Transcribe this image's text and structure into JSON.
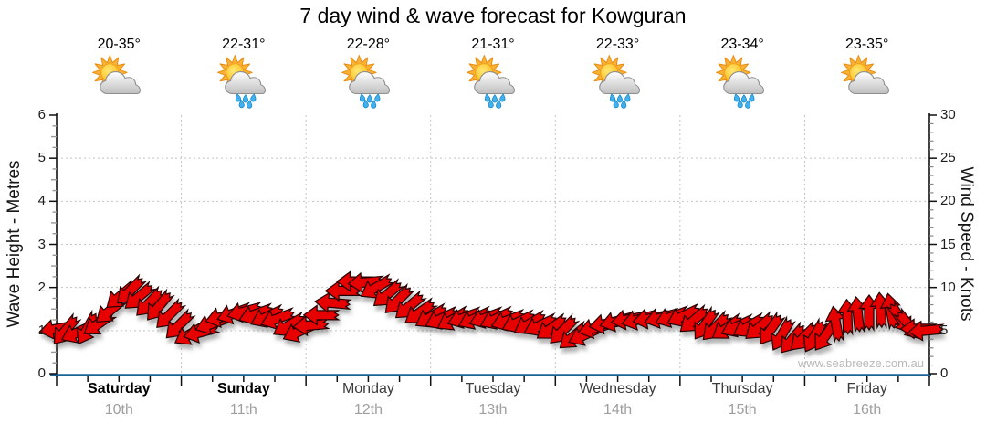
{
  "header": {
    "title": "7 day wind & wave forecast for Kowguran"
  },
  "watermark": "www.seabreeze.com.au",
  "days": [
    {
      "name": "Saturday",
      "date": "10th",
      "temp": "20-35°",
      "icon": "sun-cloud",
      "weekend": true
    },
    {
      "name": "Sunday",
      "date": "11th",
      "temp": "22-31°",
      "icon": "sun-cloud-rain",
      "weekend": true
    },
    {
      "name": "Monday",
      "date": "12th",
      "temp": "22-28°",
      "icon": "sun-cloud-rain",
      "weekend": false
    },
    {
      "name": "Tuesday",
      "date": "13th",
      "temp": "21-31°",
      "icon": "sun-cloud-rain",
      "weekend": false
    },
    {
      "name": "Wednesday",
      "date": "14th",
      "temp": "22-33°",
      "icon": "sun-cloud-rain",
      "weekend": false
    },
    {
      "name": "Thursday",
      "date": "15th",
      "temp": "23-34°",
      "icon": "sun-cloud-rain",
      "weekend": false
    },
    {
      "name": "Friday",
      "date": "16th",
      "temp": "23-35°",
      "icon": "sun-cloud",
      "weekend": false
    }
  ],
  "chart_data": {
    "type": "wind-arrow-series",
    "title": "7 day wind & wave forecast for Kowguran",
    "left_axis": {
      "label": "Wave Height - Metres",
      "min": 0,
      "max": 6,
      "ticks": [
        0,
        1,
        2,
        3,
        4,
        5,
        6
      ]
    },
    "right_axis": {
      "label": "Wind Speed - Knots",
      "min": 0,
      "max": 30,
      "ticks": [
        0,
        5,
        10,
        15,
        20,
        25,
        30
      ]
    },
    "x_axis": {
      "days": 7,
      "subticks_per_day": 4,
      "grid": "dotted-at-day-boundaries"
    },
    "arrow_color": "#e60000",
    "arrow_outline": "#240000",
    "axis_line_color": "#1d6396",
    "grid_color": "#c4c4c4",
    "sample_format": [
      "t (0-1 across 7 days)",
      "wind_knots",
      "arrow_rotation_deg (0 = pointing W/left, 90 = pointing N/up, negative = tilted down-left)"
    ],
    "samples": [
      [
        0.0,
        5.2,
        -10
      ],
      [
        0.01,
        5.0,
        -50
      ],
      [
        0.024,
        4.8,
        -25
      ],
      [
        0.035,
        5.2,
        -60
      ],
      [
        0.048,
        5.8,
        -35
      ],
      [
        0.061,
        7.3,
        -40
      ],
      [
        0.073,
        9.0,
        -40
      ],
      [
        0.084,
        9.6,
        -45
      ],
      [
        0.094,
        8.9,
        -40
      ],
      [
        0.106,
        8.2,
        -45
      ],
      [
        0.117,
        7.8,
        -50
      ],
      [
        0.129,
        6.8,
        -45
      ],
      [
        0.14,
        5.6,
        -45
      ],
      [
        0.153,
        4.6,
        -30
      ],
      [
        0.165,
        4.8,
        -15
      ],
      [
        0.178,
        5.8,
        -20
      ],
      [
        0.19,
        6.6,
        -15
      ],
      [
        0.203,
        7.0,
        -20
      ],
      [
        0.215,
        7.2,
        -15
      ],
      [
        0.228,
        6.9,
        -20
      ],
      [
        0.241,
        6.6,
        -25
      ],
      [
        0.253,
        6.4,
        -20
      ],
      [
        0.266,
        5.6,
        -30
      ],
      [
        0.278,
        4.9,
        -25
      ],
      [
        0.291,
        5.6,
        -5
      ],
      [
        0.303,
        6.8,
        0
      ],
      [
        0.316,
        8.2,
        5
      ],
      [
        0.328,
        9.6,
        0
      ],
      [
        0.341,
        10.7,
        0
      ],
      [
        0.354,
        10.6,
        -5
      ],
      [
        0.366,
        10.0,
        -30
      ],
      [
        0.379,
        9.2,
        -40
      ],
      [
        0.391,
        8.5,
        -45
      ],
      [
        0.404,
        7.8,
        -40
      ],
      [
        0.416,
        7.1,
        -35
      ],
      [
        0.429,
        6.6,
        -30
      ],
      [
        0.441,
        6.4,
        -25
      ],
      [
        0.454,
        6.3,
        -30
      ],
      [
        0.467,
        6.5,
        -20
      ],
      [
        0.479,
        6.4,
        -25
      ],
      [
        0.492,
        6.5,
        -20
      ],
      [
        0.504,
        6.4,
        -25
      ],
      [
        0.517,
        6.2,
        -20
      ],
      [
        0.529,
        6.0,
        -25
      ],
      [
        0.542,
        5.8,
        -30
      ],
      [
        0.554,
        5.6,
        -25
      ],
      [
        0.567,
        5.3,
        -35
      ],
      [
        0.58,
        5.0,
        -45
      ],
      [
        0.592,
        4.3,
        -40
      ],
      [
        0.605,
        4.5,
        -25
      ],
      [
        0.617,
        5.3,
        -15
      ],
      [
        0.63,
        5.8,
        -10
      ],
      [
        0.642,
        6.1,
        -15
      ],
      [
        0.655,
        6.3,
        -10
      ],
      [
        0.667,
        6.3,
        -15
      ],
      [
        0.68,
        6.4,
        -10
      ],
      [
        0.693,
        6.5,
        -15
      ],
      [
        0.705,
        6.6,
        -20
      ],
      [
        0.718,
        6.7,
        -25
      ],
      [
        0.73,
        6.2,
        -40
      ],
      [
        0.743,
        5.7,
        -55
      ],
      [
        0.755,
        5.4,
        -45
      ],
      [
        0.768,
        5.3,
        -35
      ],
      [
        0.78,
        5.5,
        -25
      ],
      [
        0.793,
        5.5,
        -30
      ],
      [
        0.805,
        5.4,
        -40
      ],
      [
        0.818,
        5.1,
        -55
      ],
      [
        0.831,
        4.5,
        -60
      ],
      [
        0.843,
        4.0,
        -50
      ],
      [
        0.856,
        4.2,
        -45
      ],
      [
        0.868,
        4.3,
        -60
      ],
      [
        0.881,
        4.4,
        -55
      ],
      [
        0.893,
        5.8,
        80
      ],
      [
        0.906,
        6.6,
        88
      ],
      [
        0.918,
        6.9,
        84
      ],
      [
        0.931,
        7.1,
        90
      ],
      [
        0.944,
        7.4,
        86
      ],
      [
        0.956,
        7.3,
        80
      ],
      [
        0.967,
        6.4,
        -125
      ],
      [
        0.977,
        5.6,
        -130
      ],
      [
        0.987,
        5.2,
        0
      ],
      [
        0.996,
        5.0,
        -5
      ]
    ]
  }
}
